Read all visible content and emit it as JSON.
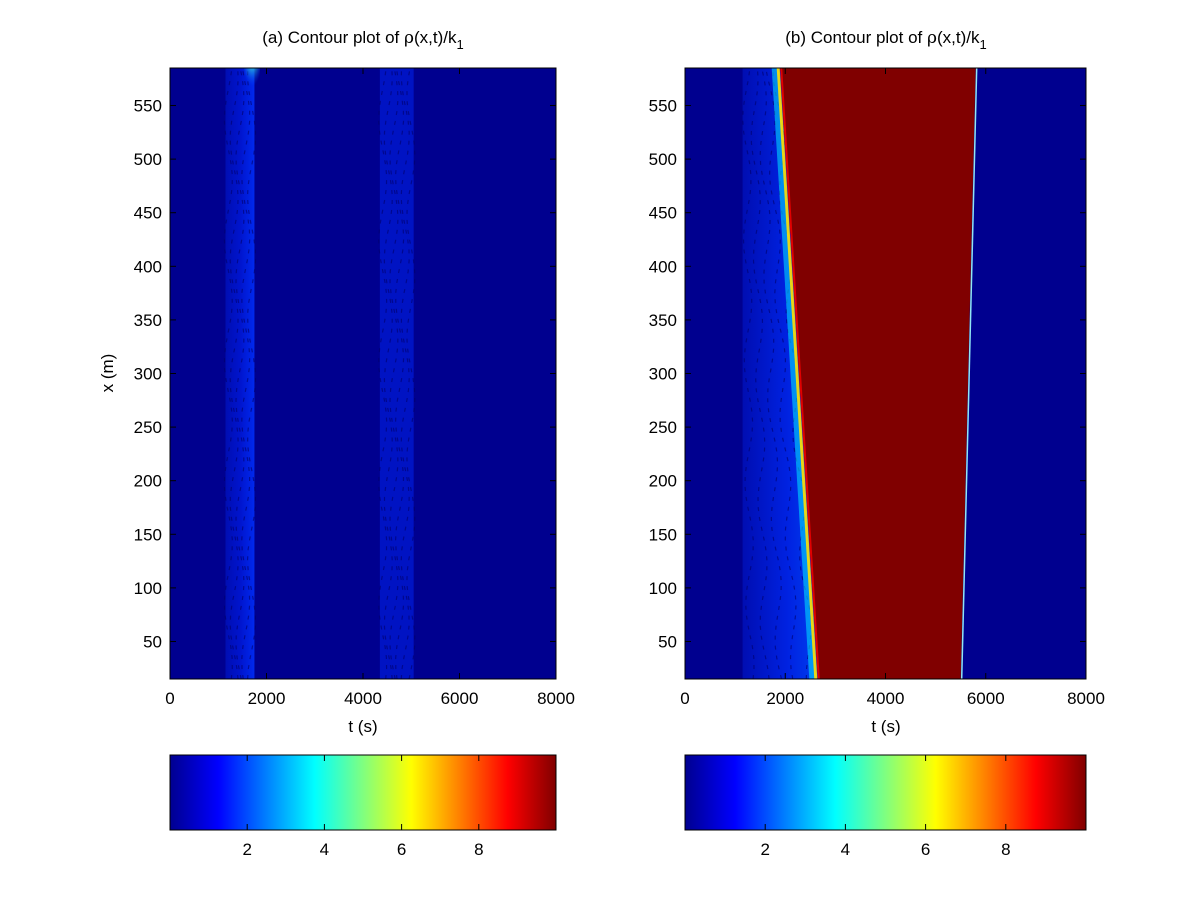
{
  "chart_data": [
    {
      "type": "heatmap",
      "panel": "a",
      "title_prefix": "(a) Contour plot of ",
      "title_rho": "ρ",
      "title_mid": "(x,t)/k",
      "title_sub": "1",
      "xlabel": "t (s)",
      "ylabel": "x (m)",
      "xlim": [
        0,
        8000
      ],
      "ylim": [
        15,
        585
      ],
      "xticks": [
        "0",
        "2000",
        "4000",
        "6000",
        "8000"
      ],
      "yticks": [
        "50",
        "100",
        "150",
        "200",
        "250",
        "300",
        "350",
        "400",
        "450",
        "500",
        "550"
      ],
      "background_value": 0.25,
      "regions": [
        {
          "name": "wave-1",
          "t_start": 1150,
          "t_end": 1750,
          "value": 1.0
        },
        {
          "name": "wave-2",
          "t_start": 4350,
          "t_end": 5050,
          "value": 0.8
        }
      ],
      "hotspot": {
        "t": 1700,
        "x_from": 560,
        "x_to": 585,
        "value": 4.0
      },
      "colorbar": {
        "ticks": [
          "2",
          "4",
          "6",
          "8"
        ],
        "min": 0,
        "max": 10
      }
    },
    {
      "type": "heatmap",
      "panel": "b",
      "title_prefix": "(b) Contour plot of ",
      "title_rho": "ρ",
      "title_mid": "(x,t)/k",
      "title_sub": "1",
      "xlabel": "t (s)",
      "ylabel": "",
      "xlim": [
        0,
        8000
      ],
      "ylim": [
        15,
        585
      ],
      "xticks": [
        "0",
        "2000",
        "4000",
        "6000",
        "8000"
      ],
      "yticks": [
        "50",
        "100",
        "150",
        "200",
        "250",
        "300",
        "350",
        "400",
        "450",
        "500",
        "550"
      ],
      "background_value": 0.25,
      "congestion": {
        "value": 10,
        "upstream_front": [
          {
            "t": 1900,
            "x": 585
          },
          {
            "t": 2650,
            "x": 15
          }
        ],
        "downstream_front": [
          {
            "t": 5800,
            "x": 585
          },
          {
            "t": 5500,
            "x": 15
          }
        ]
      },
      "precursor_band": {
        "t_start": 1150,
        "t_end": 1900,
        "value": 1.2
      },
      "colorbar": {
        "ticks": [
          "2",
          "4",
          "6",
          "8"
        ],
        "min": 0,
        "max": 10
      }
    }
  ]
}
